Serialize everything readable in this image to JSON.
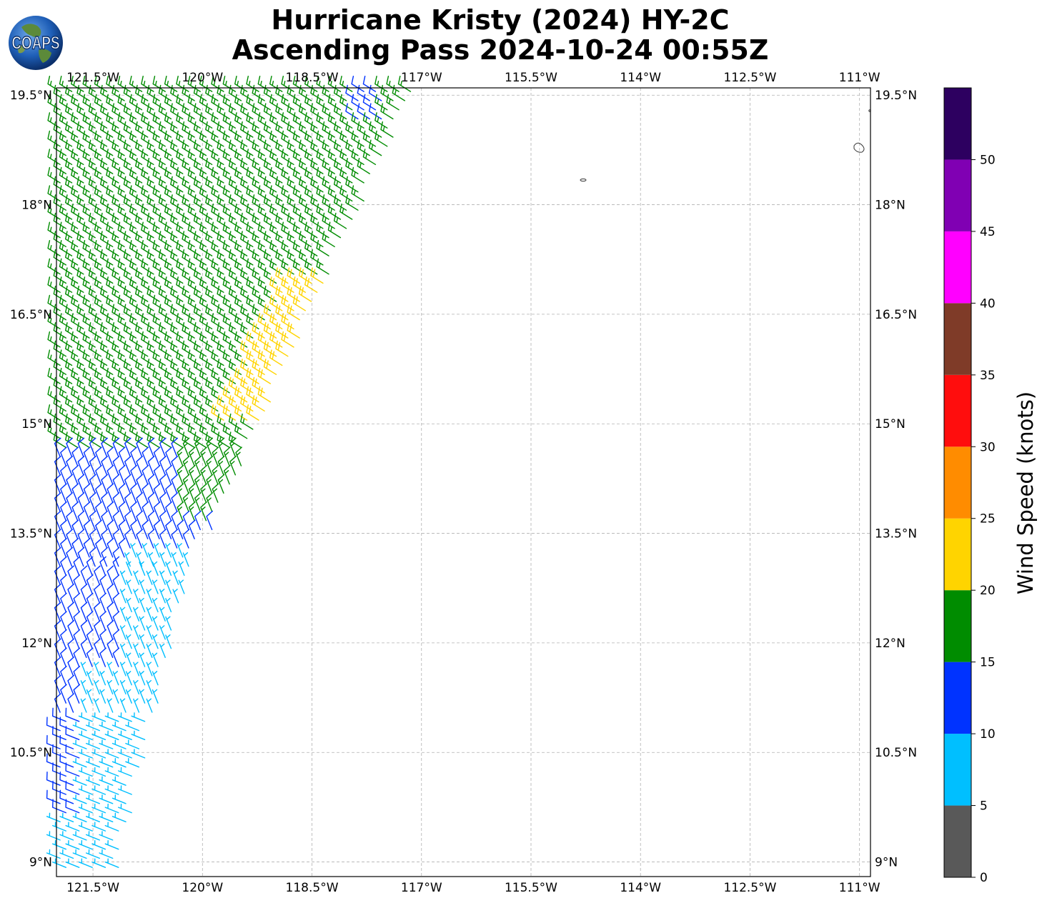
{
  "title": {
    "line1": "Hurricane Kristy (2024) HY-2C",
    "line2": "Ascending Pass 2024-10-24 00:55Z"
  },
  "logo": {
    "text": "COAPS",
    "icon": "globe-logo-icon"
  },
  "map": {
    "lon_ticks": [
      "121.5°W",
      "120°W",
      "118.5°W",
      "117°W",
      "115.5°W",
      "114°W",
      "112.5°W",
      "111°W"
    ],
    "lat_ticks": [
      "19.5°N",
      "18°N",
      "16.5°N",
      "15°N",
      "13.5°N",
      "12°N",
      "10.5°N",
      "9°N"
    ],
    "lon_range": [
      -122.0,
      -110.85
    ],
    "lat_range": [
      8.8,
      19.6
    ],
    "grid": true,
    "gridline_color": "#b0b0b0"
  },
  "colorbar": {
    "label": "Wind Speed (knots)",
    "ticks": [
      "0",
      "5",
      "10",
      "15",
      "20",
      "25",
      "30",
      "35",
      "40",
      "45",
      "50"
    ],
    "bins": [
      {
        "min": 0,
        "max": 5,
        "color": "#595959"
      },
      {
        "min": 5,
        "max": 10,
        "color": "#00bfff"
      },
      {
        "min": 10,
        "max": 15,
        "color": "#0033ff"
      },
      {
        "min": 15,
        "max": 20,
        "color": "#008c00"
      },
      {
        "min": 20,
        "max": 25,
        "color": "#ffd400"
      },
      {
        "min": 25,
        "max": 30,
        "color": "#ff8c00"
      },
      {
        "min": 30,
        "max": 35,
        "color": "#ff0d0d"
      },
      {
        "min": 35,
        "max": 40,
        "color": "#7f3b28"
      },
      {
        "min": 40,
        "max": 45,
        "color": "#ff00ff"
      },
      {
        "min": 45,
        "max": 50,
        "color": "#8000b3"
      },
      {
        "min": 50,
        "max": 55,
        "color": "#2d0060"
      }
    ]
  }
}
